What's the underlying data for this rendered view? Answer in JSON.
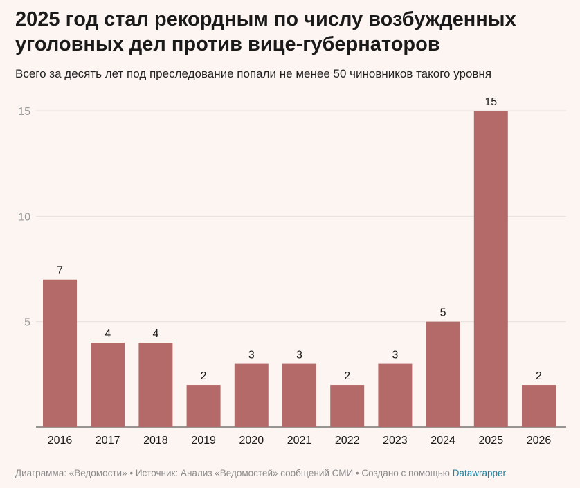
{
  "title": "2025 год стал рекордным по числу возбужденных уголовных дел против вице-губернаторов",
  "subtitle": "Всего за десять лет под преследование попали не менее 50 чиновников такого уровня",
  "footer": {
    "text": "Диаграмма: «Ведомости» • Источник: Анализ «Ведомостей» сообщений СМИ • Создано с помощью",
    "link": "Datawrapper"
  },
  "colors": {
    "bar": "#b36a68",
    "background": "#fdf5f2",
    "grid": "#e6e0dd",
    "link": "#1d81a2"
  },
  "chart_data": {
    "type": "bar",
    "categories": [
      "2016",
      "2017",
      "2018",
      "2019",
      "2020",
      "2021",
      "2022",
      "2023",
      "2024",
      "2025",
      "2026"
    ],
    "values": [
      7,
      4,
      4,
      2,
      3,
      3,
      2,
      3,
      5,
      15,
      2
    ],
    "ylim": [
      0,
      15
    ],
    "yticks": [
      5,
      10,
      15
    ],
    "grid": true,
    "data_labels": true
  }
}
